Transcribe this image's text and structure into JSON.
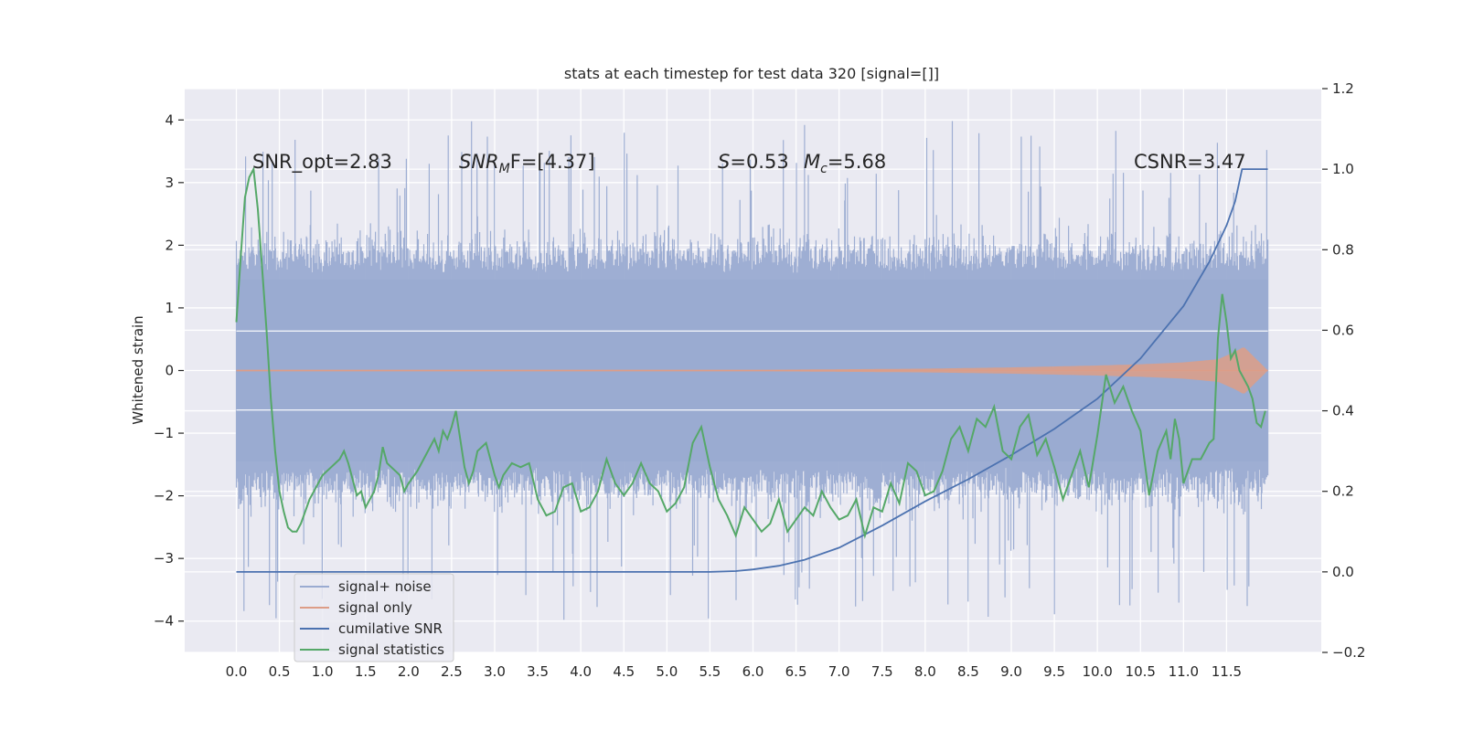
{
  "chart_data": {
    "type": "line",
    "title": "stats at each timestep for test data 320 [signal=[]]",
    "ylabel": "Whitened strain",
    "xlabel": "",
    "xlim": [
      -0.6,
      12.6
    ],
    "ylim": [
      -4.5,
      4.5
    ],
    "y2lim": [
      -0.2,
      1.2
    ],
    "x_ticks": [
      "0.0",
      "0.5",
      "1.0",
      "1.5",
      "2.0",
      "2.5",
      "3.0",
      "3.5",
      "4.0",
      "4.5",
      "5.0",
      "5.5",
      "6.0",
      "6.5",
      "7.0",
      "7.5",
      "8.0",
      "8.5",
      "9.0",
      "9.5",
      "10.0",
      "10.5",
      "11.0",
      "11.5"
    ],
    "y_ticks": [
      "4",
      "3",
      "2",
      "1",
      "0",
      "−1",
      "−2",
      "−3",
      "−4"
    ],
    "y2_ticks": [
      "1.2",
      "1.0",
      "0.8",
      "0.6",
      "0.4",
      "0.2",
      "0.0",
      "−0.2"
    ],
    "grid": true,
    "legend_placement": "lower-left",
    "annotations": {
      "snr_opt": "SNR_opt=2.83",
      "snr_mf_prefix": "SNR",
      "snr_mf_sub": "M",
      "snr_mf_suffix": "F=[4.37]",
      "s_sym": "S",
      "s_val": "=0.53",
      "mc_sym": "M",
      "mc_sub": "c",
      "mc_val": "=5.68",
      "csnr": "CSNR=3.47"
    },
    "colors": {
      "noise": "#9aabd1",
      "signal": "#dd9d87",
      "cumulative": "#4c72b0",
      "stats": "#55a868",
      "plot_bg": "#eaeaf2",
      "grid": "#ffffff"
    },
    "series": [
      {
        "name": "signal+ noise",
        "axis": "left",
        "x_range": [
          0.0,
          11.98
        ],
        "envelope": "noise band roughly ±1.9 with spikes up to about ±4.1"
      },
      {
        "name": "signal only",
        "axis": "left",
        "x": [
          0.0,
          6.0,
          8.0,
          9.0,
          10.0,
          10.5,
          11.0,
          11.4,
          11.6,
          11.7,
          11.98
        ],
        "amplitude": [
          0.01,
          0.01,
          0.03,
          0.05,
          0.08,
          0.1,
          0.13,
          0.18,
          0.3,
          0.38,
          0.0
        ]
      },
      {
        "name": "cumilative SNR",
        "axis": "right",
        "x": [
          0.0,
          5.5,
          5.8,
          6.0,
          6.3,
          6.6,
          7.0,
          7.5,
          8.0,
          8.5,
          9.0,
          9.5,
          10.0,
          10.5,
          11.0,
          11.3,
          11.5,
          11.6,
          11.68,
          11.98
        ],
        "values": [
          0.0,
          0.0,
          0.002,
          0.006,
          0.015,
          0.03,
          0.06,
          0.115,
          0.175,
          0.23,
          0.29,
          0.355,
          0.43,
          0.53,
          0.66,
          0.77,
          0.86,
          0.92,
          1.0,
          1.0
        ]
      },
      {
        "name": "signal statistics",
        "axis": "right",
        "x": [
          0.0,
          0.05,
          0.1,
          0.15,
          0.2,
          0.25,
          0.3,
          0.35,
          0.4,
          0.45,
          0.5,
          0.55,
          0.6,
          0.65,
          0.7,
          0.75,
          0.8,
          0.85,
          0.9,
          1.0,
          1.1,
          1.2,
          1.25,
          1.3,
          1.35,
          1.4,
          1.45,
          1.5,
          1.55,
          1.6,
          1.65,
          1.7,
          1.75,
          1.8,
          1.85,
          1.9,
          1.95,
          2.0,
          2.1,
          2.2,
          2.3,
          2.35,
          2.4,
          2.45,
          2.5,
          2.55,
          2.6,
          2.65,
          2.7,
          2.75,
          2.8,
          2.9,
          3.0,
          3.05,
          3.1,
          3.2,
          3.3,
          3.4,
          3.5,
          3.6,
          3.7,
          3.8,
          3.9,
          4.0,
          4.1,
          4.2,
          4.3,
          4.4,
          4.5,
          4.6,
          4.7,
          4.8,
          4.9,
          5.0,
          5.1,
          5.2,
          5.3,
          5.4,
          5.5,
          5.6,
          5.7,
          5.8,
          5.9,
          6.0,
          6.1,
          6.2,
          6.3,
          6.4,
          6.5,
          6.6,
          6.7,
          6.8,
          6.9,
          7.0,
          7.1,
          7.2,
          7.3,
          7.4,
          7.5,
          7.6,
          7.7,
          7.8,
          7.9,
          8.0,
          8.1,
          8.2,
          8.3,
          8.4,
          8.5,
          8.6,
          8.7,
          8.8,
          8.9,
          9.0,
          9.1,
          9.2,
          9.3,
          9.4,
          9.5,
          9.6,
          9.7,
          9.8,
          9.9,
          10.0,
          10.1,
          10.2,
          10.3,
          10.4,
          10.5,
          10.6,
          10.7,
          10.8,
          10.85,
          10.9,
          10.95,
          11.0,
          11.1,
          11.2,
          11.3,
          11.35,
          11.4,
          11.45,
          11.5,
          11.55,
          11.6,
          11.65,
          11.7,
          11.75,
          11.8,
          11.85,
          11.9,
          11.95
        ],
        "values": [
          0.62,
          0.78,
          0.93,
          0.98,
          1.0,
          0.9,
          0.75,
          0.6,
          0.43,
          0.3,
          0.2,
          0.15,
          0.11,
          0.1,
          0.1,
          0.12,
          0.15,
          0.18,
          0.2,
          0.24,
          0.26,
          0.28,
          0.3,
          0.27,
          0.23,
          0.19,
          0.2,
          0.16,
          0.18,
          0.2,
          0.24,
          0.31,
          0.27,
          0.26,
          0.25,
          0.24,
          0.2,
          0.22,
          0.25,
          0.29,
          0.33,
          0.3,
          0.35,
          0.33,
          0.36,
          0.4,
          0.33,
          0.26,
          0.22,
          0.25,
          0.3,
          0.32,
          0.24,
          0.21,
          0.24,
          0.27,
          0.26,
          0.27,
          0.18,
          0.14,
          0.15,
          0.21,
          0.22,
          0.15,
          0.16,
          0.2,
          0.28,
          0.22,
          0.19,
          0.22,
          0.27,
          0.22,
          0.2,
          0.15,
          0.17,
          0.21,
          0.32,
          0.36,
          0.26,
          0.18,
          0.14,
          0.09,
          0.16,
          0.13,
          0.1,
          0.12,
          0.18,
          0.1,
          0.13,
          0.16,
          0.14,
          0.2,
          0.16,
          0.13,
          0.14,
          0.18,
          0.09,
          0.16,
          0.15,
          0.22,
          0.17,
          0.27,
          0.25,
          0.19,
          0.2,
          0.25,
          0.33,
          0.36,
          0.3,
          0.38,
          0.36,
          0.41,
          0.3,
          0.28,
          0.36,
          0.39,
          0.29,
          0.33,
          0.26,
          0.18,
          0.24,
          0.3,
          0.21,
          0.34,
          0.49,
          0.42,
          0.46,
          0.4,
          0.35,
          0.19,
          0.3,
          0.35,
          0.28,
          0.38,
          0.33,
          0.22,
          0.28,
          0.28,
          0.32,
          0.33,
          0.58,
          0.69,
          0.62,
          0.53,
          0.55,
          0.5,
          0.48,
          0.46,
          0.43,
          0.37,
          0.36,
          0.4
        ]
      }
    ]
  }
}
